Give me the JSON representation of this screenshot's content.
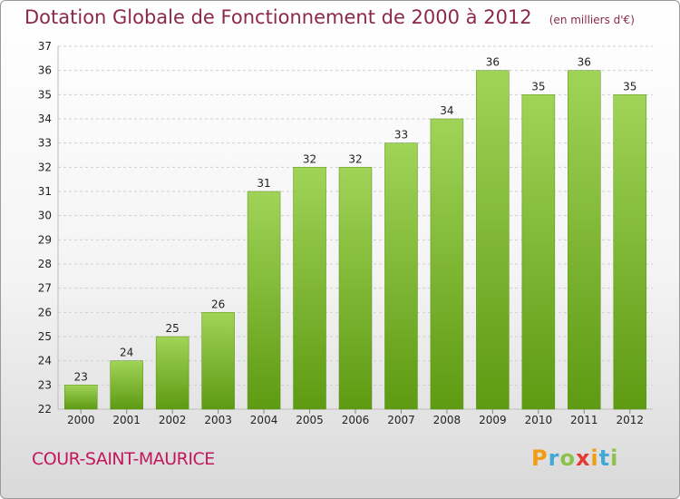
{
  "title": "Dotation Globale de Fonctionnement de 2000 à 2012",
  "unit_note": "(en milliers d'€)",
  "city": "COUR-SAINT-MAURICE",
  "logo": {
    "letters": [
      "P",
      "r",
      "o",
      "x",
      "i",
      "t",
      "i"
    ],
    "colors": [
      "#f39c12",
      "#3fa9d8",
      "#8bc34a",
      "#e53935",
      "#f39c12",
      "#3fa9d8",
      "#8bc34a"
    ]
  },
  "colors": {
    "bar_top": "#a0d458",
    "bar_bottom": "#5e9a12",
    "grid": "#cfcfcf",
    "axis_text": "#222222"
  },
  "chart_data": {
    "type": "bar",
    "title": "Dotation Globale de Fonctionnement de 2000 à 2012",
    "categories": [
      "2000",
      "2001",
      "2002",
      "2003",
      "2004",
      "2005",
      "2006",
      "2007",
      "2008",
      "2009",
      "2010",
      "2011",
      "2012"
    ],
    "values": [
      23,
      24,
      25,
      26,
      31,
      32,
      32,
      33,
      34,
      36,
      35,
      36,
      35
    ],
    "ylim": [
      22,
      37
    ],
    "yticks": [
      22,
      23,
      24,
      25,
      26,
      27,
      28,
      29,
      30,
      31,
      32,
      33,
      34,
      35,
      36,
      37
    ],
    "grid": true,
    "data_labels": true
  }
}
